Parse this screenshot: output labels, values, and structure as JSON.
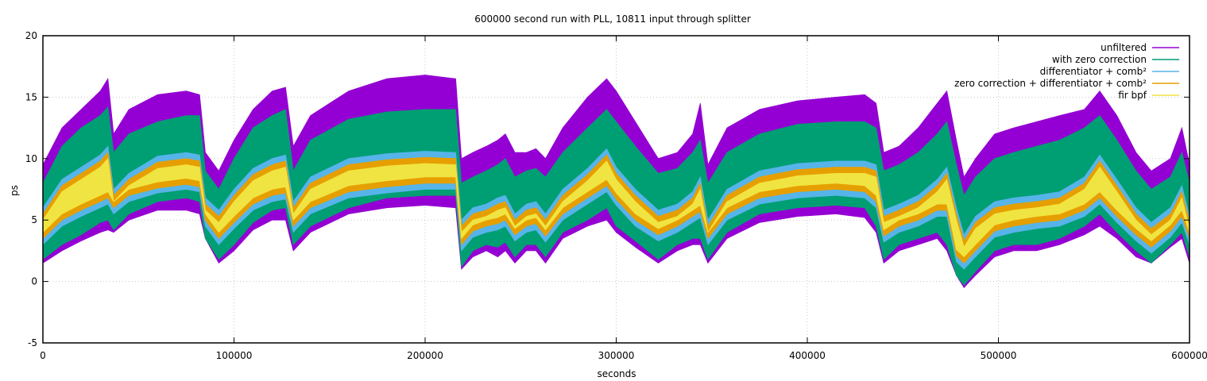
{
  "chart_data": {
    "type": "area",
    "title": "600000 second run with PLL, 10811 input through splitter",
    "xlabel": "seconds",
    "ylabel": "ps",
    "xlim": [
      0,
      600000
    ],
    "ylim": [
      -5,
      20
    ],
    "xticks": [
      0,
      100000,
      200000,
      300000,
      400000,
      500000,
      600000
    ],
    "yticks": [
      -5,
      0,
      5,
      10,
      15,
      20
    ],
    "grid": true,
    "legend_position": "top-right",
    "x": [
      0,
      10000,
      20000,
      30000,
      34000,
      37000,
      45000,
      60000,
      75000,
      82000,
      85000,
      92000,
      100000,
      110000,
      120000,
      127000,
      131000,
      140000,
      160000,
      180000,
      200000,
      216000,
      219000,
      225000,
      232000,
      238000,
      242000,
      247000,
      253000,
      258000,
      263000,
      272000,
      285000,
      295000,
      300000,
      310000,
      322000,
      332000,
      340000,
      344000,
      348000,
      358000,
      375000,
      395000,
      415000,
      430000,
      436000,
      440000,
      448000,
      458000,
      468000,
      473000,
      478000,
      482000,
      488000,
      498000,
      508000,
      520000,
      532000,
      545000,
      553000,
      562000,
      572000,
      580000,
      590000,
      596000,
      600000
    ],
    "series": [
      {
        "name": "unfiltered",
        "color": "#9400d3",
        "lower": [
          1.5,
          2.5,
          3.3,
          4.0,
          4.2,
          4.0,
          5.0,
          5.8,
          5.8,
          5.5,
          3.5,
          1.5,
          2.5,
          4.2,
          5.0,
          5.0,
          2.5,
          4.0,
          5.5,
          6.0,
          6.2,
          6.0,
          1.0,
          2.0,
          2.5,
          2.0,
          2.5,
          1.5,
          2.5,
          2.5,
          1.5,
          3.5,
          4.5,
          5.0,
          4.0,
          2.8,
          1.5,
          2.5,
          3.0,
          3.0,
          1.5,
          3.5,
          4.8,
          5.3,
          5.5,
          5.2,
          4.0,
          1.5,
          2.5,
          3.0,
          3.5,
          2.5,
          0.5,
          -0.5,
          0.5,
          2.0,
          2.5,
          2.5,
          3.0,
          3.8,
          4.5,
          3.5,
          2.0,
          1.5,
          2.8,
          3.5,
          1.5
        ],
        "upper": [
          9.5,
          12.5,
          14.0,
          15.5,
          16.5,
          12.0,
          14.0,
          15.2,
          15.5,
          15.2,
          10.5,
          9.0,
          11.5,
          14.0,
          15.5,
          15.8,
          11.0,
          13.5,
          15.5,
          16.5,
          16.8,
          16.5,
          10.0,
          10.5,
          11.0,
          11.5,
          12.0,
          10.5,
          10.5,
          10.8,
          10.0,
          12.5,
          15.0,
          16.5,
          15.5,
          13.0,
          10.0,
          10.5,
          12.0,
          14.5,
          9.5,
          12.5,
          14.0,
          14.7,
          15.0,
          15.2,
          14.5,
          10.5,
          11.0,
          12.5,
          14.5,
          15.5,
          11.5,
          8.5,
          10.0,
          12.0,
          12.5,
          13.0,
          13.5,
          14.0,
          15.5,
          13.5,
          10.5,
          9.0,
          10.0,
          12.5,
          9.5
        ]
      },
      {
        "name": "with zero correction",
        "color": "#009e73",
        "lower": [
          1.8,
          3.0,
          3.8,
          4.8,
          5.0,
          4.2,
          5.5,
          6.5,
          6.8,
          6.5,
          3.5,
          1.8,
          3.0,
          4.8,
          5.8,
          6.0,
          3.0,
          4.5,
          6.0,
          6.8,
          7.0,
          7.0,
          1.2,
          2.5,
          3.0,
          2.8,
          3.2,
          2.0,
          3.0,
          3.0,
          2.0,
          4.0,
          5.0,
          6.0,
          4.5,
          3.3,
          1.8,
          3.0,
          3.5,
          3.5,
          1.8,
          4.0,
          5.5,
          6.0,
          6.2,
          6.0,
          4.5,
          1.8,
          3.0,
          3.5,
          4.0,
          3.0,
          0.5,
          -0.3,
          0.8,
          2.5,
          3.0,
          3.0,
          3.5,
          4.5,
          5.5,
          4.0,
          2.5,
          1.5,
          3.0,
          4.0,
          2.0
        ],
        "upper": [
          8.0,
          11.0,
          12.5,
          13.5,
          14.2,
          10.5,
          12.0,
          13.0,
          13.5,
          13.5,
          9.0,
          7.5,
          10.0,
          12.5,
          13.5,
          14.0,
          9.0,
          11.5,
          13.2,
          13.8,
          14.0,
          14.0,
          8.0,
          8.5,
          9.0,
          9.5,
          10.0,
          8.5,
          9.0,
          9.2,
          8.5,
          10.5,
          12.5,
          14.0,
          13.0,
          11.0,
          8.8,
          9.2,
          10.5,
          11.5,
          8.0,
          10.5,
          12.0,
          12.8,
          13.0,
          13.0,
          12.5,
          9.0,
          9.5,
          10.5,
          12.0,
          13.0,
          9.5,
          7.0,
          8.5,
          10.0,
          10.5,
          11.0,
          11.5,
          12.5,
          13.5,
          11.5,
          9.0,
          7.5,
          8.5,
          10.5,
          8.0
        ]
      },
      {
        "name": "differentiator + comb²",
        "color": "#56b4e9",
        "lower": [
          3.0,
          4.5,
          5.3,
          6.0,
          6.3,
          5.5,
          6.5,
          7.2,
          7.5,
          7.3,
          4.5,
          3.0,
          4.3,
          5.8,
          6.5,
          6.7,
          4.0,
          5.5,
          6.8,
          7.2,
          7.5,
          7.5,
          2.5,
          3.6,
          4.0,
          4.2,
          4.5,
          3.3,
          4.0,
          4.2,
          3.2,
          5.0,
          6.3,
          7.3,
          6.2,
          4.5,
          3.3,
          4.0,
          4.8,
          5.2,
          3.0,
          5.0,
          6.3,
          6.8,
          7.0,
          6.8,
          6.0,
          3.2,
          4.0,
          4.5,
          5.3,
          5.3,
          1.6,
          1.0,
          2.0,
          3.6,
          4.0,
          4.3,
          4.5,
          5.3,
          6.3,
          4.8,
          3.3,
          2.3,
          3.6,
          4.8,
          3.0
        ],
        "upper": [
          6.0,
          8.3,
          9.3,
          10.3,
          11.0,
          7.5,
          8.8,
          10.2,
          10.5,
          10.3,
          6.8,
          5.8,
          7.5,
          9.2,
          10.0,
          10.3,
          6.5,
          8.5,
          10.0,
          10.4,
          10.6,
          10.5,
          5.0,
          6.0,
          6.3,
          6.8,
          7.0,
          5.5,
          6.3,
          6.5,
          5.5,
          7.5,
          9.2,
          10.8,
          9.3,
          7.5,
          5.8,
          6.3,
          7.3,
          8.5,
          5.0,
          7.5,
          9.0,
          9.6,
          9.8,
          9.8,
          9.5,
          5.8,
          6.3,
          7.0,
          8.3,
          9.3,
          6.0,
          3.8,
          5.3,
          6.5,
          6.8,
          7.0,
          7.3,
          8.5,
          10.3,
          8.3,
          6.0,
          4.8,
          6.0,
          7.8,
          5.3
        ]
      },
      {
        "name": "zero correction + differentiator + comb²",
        "color": "#e69f00",
        "lower": [
          3.5,
          5.0,
          5.8,
          6.5,
          6.8,
          6.0,
          7.0,
          7.6,
          7.9,
          7.7,
          5.0,
          3.5,
          4.8,
          6.3,
          7.0,
          7.2,
          4.5,
          6.0,
          7.3,
          7.7,
          8.0,
          8.0,
          3.0,
          4.1,
          4.5,
          4.7,
          5.0,
          3.8,
          4.5,
          4.7,
          3.7,
          5.5,
          6.8,
          7.8,
          6.7,
          5.0,
          3.8,
          4.5,
          5.3,
          5.7,
          3.5,
          5.5,
          6.8,
          7.3,
          7.5,
          7.3,
          6.5,
          3.7,
          4.5,
          5.0,
          5.8,
          5.8,
          2.1,
          1.5,
          2.5,
          4.1,
          4.5,
          4.8,
          5.0,
          5.8,
          6.8,
          5.3,
          3.8,
          2.8,
          4.1,
          5.3,
          3.5
        ],
        "upper": [
          5.5,
          7.8,
          8.8,
          9.8,
          10.5,
          7.0,
          8.3,
          9.7,
          10.0,
          9.8,
          6.3,
          5.3,
          7.0,
          8.7,
          9.5,
          9.8,
          6.0,
          8.0,
          9.5,
          9.9,
          10.1,
          10.0,
          4.5,
          5.5,
          5.8,
          6.3,
          6.5,
          5.0,
          5.8,
          6.0,
          5.0,
          7.0,
          8.7,
          10.3,
          8.8,
          7.0,
          5.3,
          5.8,
          6.8,
          8.0,
          4.5,
          7.0,
          8.5,
          9.1,
          9.3,
          9.3,
          9.0,
          5.3,
          5.8,
          6.5,
          7.8,
          8.8,
          5.5,
          3.3,
          4.8,
          6.0,
          6.3,
          6.5,
          6.8,
          8.0,
          9.8,
          7.8,
          5.5,
          4.3,
          5.5,
          7.3,
          4.8
        ]
      },
      {
        "name": "fir bpf",
        "color": "#f0e442",
        "lower": [
          4.0,
          5.5,
          6.3,
          7.0,
          7.3,
          6.5,
          7.5,
          8.1,
          8.4,
          8.2,
          5.5,
          4.0,
          5.3,
          6.8,
          7.5,
          7.7,
          5.0,
          6.5,
          7.8,
          8.2,
          8.5,
          8.5,
          3.5,
          4.6,
          5.0,
          5.2,
          5.5,
          4.3,
          5.0,
          5.2,
          4.2,
          6.0,
          7.3,
          8.3,
          7.2,
          5.5,
          4.3,
          5.0,
          5.8,
          6.2,
          4.0,
          6.0,
          7.3,
          7.8,
          8.0,
          7.8,
          7.0,
          4.2,
          5.0,
          5.5,
          6.3,
          6.3,
          2.6,
          2.0,
          3.0,
          4.6,
          5.0,
          5.3,
          5.5,
          6.3,
          7.3,
          5.8,
          4.3,
          3.3,
          4.6,
          5.8,
          4.0
        ],
        "upper": [
          5.0,
          7.3,
          8.3,
          9.3,
          10.0,
          6.5,
          7.8,
          9.2,
          9.5,
          9.3,
          5.8,
          4.8,
          6.5,
          8.2,
          9.0,
          9.3,
          5.5,
          7.5,
          9.0,
          9.4,
          9.6,
          9.5,
          4.0,
          5.0,
          5.3,
          5.8,
          6.0,
          4.5,
          5.3,
          5.5,
          4.5,
          6.5,
          8.2,
          9.8,
          8.3,
          6.5,
          4.8,
          5.3,
          6.3,
          7.5,
          4.0,
          6.5,
          8.0,
          8.6,
          8.8,
          8.8,
          8.5,
          4.8,
          5.3,
          6.0,
          7.3,
          8.3,
          5.0,
          2.8,
          4.3,
          5.5,
          5.8,
          6.0,
          6.3,
          7.5,
          9.3,
          7.3,
          5.0,
          3.8,
          5.0,
          6.8,
          4.3
        ]
      }
    ]
  }
}
